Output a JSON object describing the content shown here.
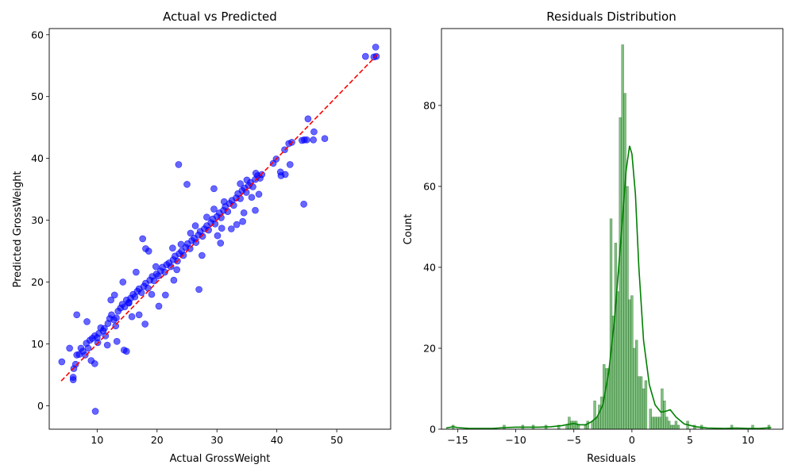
{
  "chart_data": [
    {
      "type": "scatter",
      "title": "Actual vs Predicted",
      "xlabel": "Actual GrossWeight",
      "ylabel": "Predicted GrossWeight",
      "xlim": [
        2.0,
        59.0
      ],
      "ylim": [
        -3.8,
        61.0
      ],
      "xticks": [
        10,
        20,
        30,
        40,
        50
      ],
      "yticks": [
        0,
        10,
        20,
        30,
        40,
        50,
        60
      ],
      "grid": false,
      "point_color": "#0000ff",
      "reference_line": {
        "color": "#ff0000",
        "style": "dashed",
        "x": [
          4.0,
          57.0
        ],
        "y": [
          4.0,
          57.0
        ]
      },
      "points": [
        [
          6.0,
          4.2
        ],
        [
          6.0,
          4.6
        ],
        [
          6.1,
          6.0
        ],
        [
          6.4,
          6.7
        ],
        [
          6.6,
          8.2
        ],
        [
          7.0,
          8.3
        ],
        [
          7.3,
          9.3
        ],
        [
          7.6,
          8.8
        ],
        [
          8.0,
          8.2
        ],
        [
          8.2,
          10.1
        ],
        [
          8.5,
          9.3
        ],
        [
          8.8,
          10.6
        ],
        [
          9.2,
          10.9
        ],
        [
          9.6,
          11.3
        ],
        [
          10.0,
          11.0
        ],
        [
          10.3,
          11.7
        ],
        [
          10.6,
          12.6
        ],
        [
          11.0,
          12.1
        ],
        [
          11.4,
          11.3
        ],
        [
          11.8,
          13.3
        ],
        [
          12.1,
          14.1
        ],
        [
          12.4,
          14.7
        ],
        [
          12.8,
          13.9
        ],
        [
          13.2,
          14.2
        ],
        [
          13.5,
          15.3
        ],
        [
          13.9,
          15.8
        ],
        [
          14.2,
          16.4
        ],
        [
          14.6,
          16.0
        ],
        [
          14.9,
          17.1
        ],
        [
          15.3,
          16.7
        ],
        [
          15.6,
          17.4
        ],
        [
          16.0,
          18.0
        ],
        [
          16.3,
          17.6
        ],
        [
          16.7,
          18.5
        ],
        [
          17.0,
          18.9
        ],
        [
          17.4,
          18.3
        ],
        [
          17.8,
          19.3
        ],
        [
          18.1,
          19.8
        ],
        [
          18.5,
          19.0
        ],
        [
          18.8,
          20.3
        ],
        [
          19.2,
          20.9
        ],
        [
          19.5,
          20.2
        ],
        [
          19.9,
          21.3
        ],
        [
          20.2,
          21.0
        ],
        [
          20.6,
          21.8
        ],
        [
          20.9,
          22.4
        ],
        [
          21.3,
          21.6
        ],
        [
          21.6,
          22.8
        ],
        [
          22.0,
          23.1
        ],
        [
          22.3,
          22.5
        ],
        [
          22.7,
          23.6
        ],
        [
          23.0,
          24.2
        ],
        [
          23.4,
          23.4
        ],
        [
          23.7,
          24.6
        ],
        [
          24.1,
          25.0
        ],
        [
          24.4,
          24.3
        ],
        [
          24.8,
          25.6
        ],
        [
          25.1,
          26.2
        ],
        [
          25.5,
          25.4
        ],
        [
          25.8,
          26.7
        ],
        [
          26.2,
          27.1
        ],
        [
          26.5,
          26.4
        ],
        [
          26.9,
          27.6
        ],
        [
          27.2,
          28.2
        ],
        [
          27.6,
          27.4
        ],
        [
          27.9,
          28.6
        ],
        [
          28.3,
          29.1
        ],
        [
          28.6,
          28.4
        ],
        [
          29.0,
          29.6
        ],
        [
          29.3,
          30.2
        ],
        [
          29.7,
          29.4
        ],
        [
          30.0,
          30.6
        ],
        [
          30.4,
          31.2
        ],
        [
          30.7,
          30.4
        ],
        [
          31.1,
          31.6
        ],
        [
          31.4,
          32.2
        ],
        [
          31.8,
          31.4
        ],
        [
          32.1,
          32.7
        ],
        [
          32.5,
          33.2
        ],
        [
          32.8,
          32.4
        ],
        [
          33.2,
          33.6
        ],
        [
          33.5,
          34.3
        ],
        [
          33.9,
          33.5
        ],
        [
          34.2,
          34.8
        ],
        [
          34.6,
          35.2
        ],
        [
          34.9,
          34.5
        ],
        [
          35.3,
          35.6
        ],
        [
          35.6,
          36.1
        ],
        [
          36.0,
          35.4
        ],
        [
          36.4,
          36.6
        ],
        [
          36.8,
          37.2
        ],
        [
          37.2,
          36.8
        ],
        [
          37.5,
          37.4
        ],
        [
          9.0,
          7.3
        ],
        [
          9.6,
          6.8
        ],
        [
          8.3,
          13.6
        ],
        [
          6.6,
          14.7
        ],
        [
          11.7,
          9.8
        ],
        [
          13.3,
          10.4
        ],
        [
          14.5,
          9.0
        ],
        [
          14.9,
          8.8
        ],
        [
          16.5,
          21.6
        ],
        [
          17.6,
          27.0
        ],
        [
          18.1,
          25.4
        ],
        [
          18.6,
          25.0
        ],
        [
          18.0,
          13.2
        ],
        [
          20.3,
          16.1
        ],
        [
          21.4,
          17.9
        ],
        [
          23.6,
          39.0
        ],
        [
          25.0,
          35.8
        ],
        [
          27.0,
          18.8
        ],
        [
          29.5,
          35.1
        ],
        [
          30.6,
          26.3
        ],
        [
          32.4,
          28.6
        ],
        [
          33.3,
          29.3
        ],
        [
          34.3,
          29.8
        ],
        [
          36.4,
          31.6
        ],
        [
          37.0,
          34.2
        ],
        [
          39.4,
          39.2
        ],
        [
          39.9,
          39.9
        ],
        [
          40.7,
          37.2
        ],
        [
          40.6,
          37.8
        ],
        [
          41.4,
          37.4
        ],
        [
          41.3,
          41.4
        ],
        [
          42.0,
          42.4
        ],
        [
          42.5,
          42.6
        ],
        [
          42.2,
          39.0
        ],
        [
          44.2,
          42.9
        ],
        [
          44.6,
          43.0
        ],
        [
          45.0,
          43.0
        ],
        [
          44.5,
          32.6
        ],
        [
          45.2,
          46.4
        ],
        [
          46.1,
          43.0
        ],
        [
          46.2,
          44.3
        ],
        [
          48.0,
          43.2
        ],
        [
          54.8,
          56.5
        ],
        [
          56.2,
          56.4
        ],
        [
          56.5,
          58.0
        ],
        [
          56.6,
          56.5
        ],
        [
          4.1,
          7.1
        ],
        [
          5.4,
          9.3
        ],
        [
          9.7,
          -0.9
        ],
        [
          12.3,
          17.1
        ],
        [
          12.9,
          17.9
        ],
        [
          14.3,
          20.0
        ],
        [
          15.3,
          16.6
        ],
        [
          17.0,
          14.7
        ],
        [
          19.1,
          18.0
        ],
        [
          22.6,
          25.5
        ],
        [
          23.3,
          22.0
        ],
        [
          24.0,
          26.1
        ],
        [
          25.6,
          27.9
        ],
        [
          26.4,
          29.1
        ],
        [
          27.5,
          24.3
        ],
        [
          28.3,
          30.5
        ],
        [
          29.5,
          31.8
        ],
        [
          30.8,
          28.7
        ],
        [
          31.2,
          33.0
        ],
        [
          33.9,
          35.9
        ],
        [
          34.5,
          31.2
        ],
        [
          35.0,
          36.5
        ],
        [
          35.8,
          33.7
        ],
        [
          36.5,
          37.6
        ],
        [
          30.1,
          27.5
        ],
        [
          22.8,
          20.3
        ],
        [
          19.8,
          22.5
        ],
        [
          15.8,
          14.4
        ],
        [
          13.1,
          12.9
        ],
        [
          11.2,
          12.5
        ],
        [
          10.1,
          10.2
        ]
      ]
    },
    {
      "type": "bar",
      "subtype": "histogram_with_kde",
      "title": "Residuals Distribution",
      "xlabel": "Residuals",
      "ylabel": "Count",
      "xlim": [
        -16.4,
        13.0
      ],
      "ylim": [
        0,
        99
      ],
      "xticks": [
        -15,
        -10,
        -5,
        0,
        5,
        10
      ],
      "yticks": [
        0,
        20,
        40,
        60,
        80
      ],
      "grid": false,
      "bar_color": "#008000",
      "bar_alpha": 0.5,
      "kde_color": "#008000",
      "bins": [
        {
          "x": -15.4,
          "count": 1
        },
        {
          "x": -11.0,
          "count": 1
        },
        {
          "x": -9.4,
          "count": 1
        },
        {
          "x": -8.5,
          "count": 1
        },
        {
          "x": -7.4,
          "count": 1
        },
        {
          "x": -6.3,
          "count": 1
        },
        {
          "x": -5.6,
          "count": 1
        },
        {
          "x": -5.4,
          "count": 3
        },
        {
          "x": -5.2,
          "count": 2
        },
        {
          "x": -5.0,
          "count": 2
        },
        {
          "x": -4.8,
          "count": 2
        },
        {
          "x": -4.6,
          "count": 1
        },
        {
          "x": -4.0,
          "count": 1
        },
        {
          "x": -3.8,
          "count": 2
        },
        {
          "x": -3.4,
          "count": 2
        },
        {
          "x": -3.2,
          "count": 7
        },
        {
          "x": -3.0,
          "count": 3
        },
        {
          "x": -2.8,
          "count": 6
        },
        {
          "x": -2.6,
          "count": 8
        },
        {
          "x": -2.4,
          "count": 16
        },
        {
          "x": -2.2,
          "count": 15
        },
        {
          "x": -2.0,
          "count": 15
        },
        {
          "x": -1.8,
          "count": 52
        },
        {
          "x": -1.6,
          "count": 28
        },
        {
          "x": -1.4,
          "count": 46
        },
        {
          "x": -1.2,
          "count": 34
        },
        {
          "x": -1.0,
          "count": 77
        },
        {
          "x": -0.8,
          "count": 95
        },
        {
          "x": -0.6,
          "count": 83
        },
        {
          "x": -0.4,
          "count": 60
        },
        {
          "x": -0.2,
          "count": 32
        },
        {
          "x": 0.0,
          "count": 33
        },
        {
          "x": 0.2,
          "count": 20
        },
        {
          "x": 0.4,
          "count": 22
        },
        {
          "x": 0.6,
          "count": 13
        },
        {
          "x": 0.8,
          "count": 13
        },
        {
          "x": 1.0,
          "count": 10
        },
        {
          "x": 1.2,
          "count": 12
        },
        {
          "x": 1.6,
          "count": 5
        },
        {
          "x": 1.8,
          "count": 3
        },
        {
          "x": 2.0,
          "count": 3
        },
        {
          "x": 2.2,
          "count": 3
        },
        {
          "x": 2.4,
          "count": 3
        },
        {
          "x": 2.6,
          "count": 10
        },
        {
          "x": 2.8,
          "count": 7
        },
        {
          "x": 3.0,
          "count": 3
        },
        {
          "x": 3.2,
          "count": 2
        },
        {
          "x": 3.4,
          "count": 1
        },
        {
          "x": 3.6,
          "count": 1
        },
        {
          "x": 3.8,
          "count": 2
        },
        {
          "x": 4.0,
          "count": 1
        },
        {
          "x": 4.8,
          "count": 2
        },
        {
          "x": 5.4,
          "count": 1
        },
        {
          "x": 6.0,
          "count": 1
        },
        {
          "x": 8.6,
          "count": 1
        },
        {
          "x": 10.4,
          "count": 1
        },
        {
          "x": 11.8,
          "count": 1
        }
      ],
      "bin_width": 0.2,
      "kde": [
        [
          -16.0,
          0.3
        ],
        [
          -15.4,
          0.6
        ],
        [
          -15.0,
          0.4
        ],
        [
          -14.0,
          0.2
        ],
        [
          -13.0,
          0.2
        ],
        [
          -12.0,
          0.2
        ],
        [
          -11.0,
          0.4
        ],
        [
          -10.0,
          0.5
        ],
        [
          -9.0,
          0.5
        ],
        [
          -8.0,
          0.5
        ],
        [
          -7.0,
          0.6
        ],
        [
          -6.0,
          0.9
        ],
        [
          -5.5,
          1.2
        ],
        [
          -5.0,
          1.4
        ],
        [
          -4.5,
          1.1
        ],
        [
          -4.0,
          1.1
        ],
        [
          -3.5,
          1.8
        ],
        [
          -3.0,
          3.0
        ],
        [
          -2.5,
          6.0
        ],
        [
          -2.0,
          14.0
        ],
        [
          -1.5,
          27.0
        ],
        [
          -1.0,
          45.0
        ],
        [
          -0.5,
          64.0
        ],
        [
          -0.2,
          70.0
        ],
        [
          0.0,
          68.0
        ],
        [
          0.3,
          58.0
        ],
        [
          0.6,
          40.0
        ],
        [
          1.0,
          22.0
        ],
        [
          1.5,
          11.0
        ],
        [
          2.0,
          6.0
        ],
        [
          2.5,
          4.2
        ],
        [
          3.0,
          4.5
        ],
        [
          3.3,
          4.8
        ],
        [
          3.8,
          3.0
        ],
        [
          4.5,
          1.3
        ],
        [
          5.5,
          0.6
        ],
        [
          6.5,
          0.3
        ],
        [
          8.0,
          0.2
        ],
        [
          9.0,
          0.3
        ],
        [
          10.0,
          0.2
        ],
        [
          11.0,
          0.2
        ],
        [
          12.0,
          0.4
        ]
      ]
    }
  ]
}
